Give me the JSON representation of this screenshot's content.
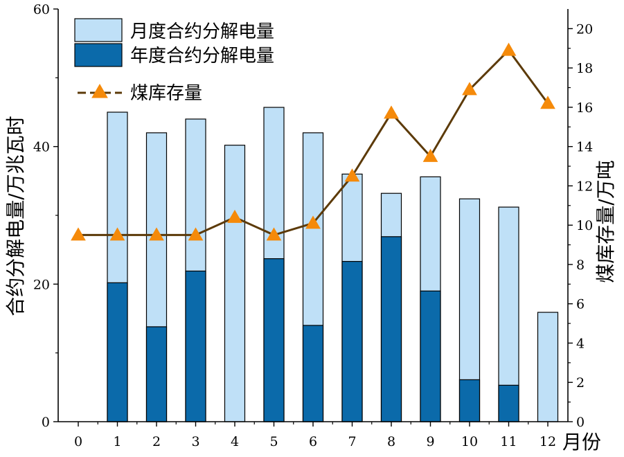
{
  "chart_data": {
    "type": "bar",
    "x_categories": [
      "0",
      "1",
      "2",
      "3",
      "4",
      "5",
      "6",
      "7",
      "8",
      "9",
      "10",
      "11",
      "12"
    ],
    "xlabel": "月份",
    "ylabel_left": "合约分解电量/万兆瓦时",
    "ylabel_right": "煤库存量/万吨",
    "ylim_left": [
      0,
      60
    ],
    "ylim_right": [
      0,
      21
    ],
    "yticks_left": [
      0,
      20,
      40,
      60
    ],
    "yticks_right": [
      0,
      2,
      4,
      6,
      8,
      10,
      12,
      14,
      16,
      18,
      20
    ],
    "legend_position": "top-left",
    "series": [
      {
        "name": "月度合约分解电量",
        "kind": "bar",
        "axis": "left",
        "color": "#bfe0f7",
        "values": [
          null,
          45,
          42,
          44,
          40.2,
          45.7,
          42,
          36,
          33.2,
          35.6,
          32.4,
          31.2,
          15.9
        ]
      },
      {
        "name": "年度合约分解电量",
        "kind": "bar",
        "axis": "left",
        "color": "#0b6aaa",
        "values": [
          null,
          20.2,
          13.8,
          21.9,
          0,
          23.7,
          14,
          23.3,
          26.9,
          19,
          6.1,
          5.3,
          0
        ]
      },
      {
        "name": "煤库存量",
        "kind": "line",
        "axis": "right",
        "color": "#5c3a08",
        "marker_color": "#f58a0a",
        "values": [
          9.5,
          9.5,
          9.5,
          9.5,
          10.4,
          9.5,
          10.1,
          12.5,
          15.7,
          13.5,
          16.9,
          18.9,
          16.2
        ]
      }
    ]
  }
}
